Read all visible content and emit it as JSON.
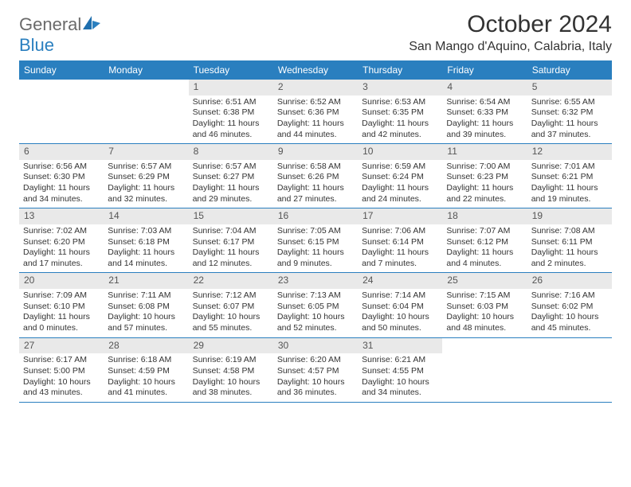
{
  "brand": {
    "name1": "General",
    "name2": "Blue"
  },
  "title": "October 2024",
  "location": "San Mango d'Aquino, Calabria, Italy",
  "colors": {
    "header_bg": "#2a7fbf",
    "header_text": "#ffffff",
    "daynum_bg": "#e9e9e9",
    "daynum_text": "#555555",
    "rule": "#2a7fbf",
    "text": "#333333",
    "logo_gray": "#6a6a6a",
    "logo_blue": "#2a7fbf"
  },
  "weekdays": [
    "Sunday",
    "Monday",
    "Tuesday",
    "Wednesday",
    "Thursday",
    "Friday",
    "Saturday"
  ],
  "weeks": [
    [
      null,
      null,
      {
        "n": "1",
        "sunrise": "Sunrise: 6:51 AM",
        "sunset": "Sunset: 6:38 PM",
        "daylight": "Daylight: 11 hours and 46 minutes."
      },
      {
        "n": "2",
        "sunrise": "Sunrise: 6:52 AM",
        "sunset": "Sunset: 6:36 PM",
        "daylight": "Daylight: 11 hours and 44 minutes."
      },
      {
        "n": "3",
        "sunrise": "Sunrise: 6:53 AM",
        "sunset": "Sunset: 6:35 PM",
        "daylight": "Daylight: 11 hours and 42 minutes."
      },
      {
        "n": "4",
        "sunrise": "Sunrise: 6:54 AM",
        "sunset": "Sunset: 6:33 PM",
        "daylight": "Daylight: 11 hours and 39 minutes."
      },
      {
        "n": "5",
        "sunrise": "Sunrise: 6:55 AM",
        "sunset": "Sunset: 6:32 PM",
        "daylight": "Daylight: 11 hours and 37 minutes."
      }
    ],
    [
      {
        "n": "6",
        "sunrise": "Sunrise: 6:56 AM",
        "sunset": "Sunset: 6:30 PM",
        "daylight": "Daylight: 11 hours and 34 minutes."
      },
      {
        "n": "7",
        "sunrise": "Sunrise: 6:57 AM",
        "sunset": "Sunset: 6:29 PM",
        "daylight": "Daylight: 11 hours and 32 minutes."
      },
      {
        "n": "8",
        "sunrise": "Sunrise: 6:57 AM",
        "sunset": "Sunset: 6:27 PM",
        "daylight": "Daylight: 11 hours and 29 minutes."
      },
      {
        "n": "9",
        "sunrise": "Sunrise: 6:58 AM",
        "sunset": "Sunset: 6:26 PM",
        "daylight": "Daylight: 11 hours and 27 minutes."
      },
      {
        "n": "10",
        "sunrise": "Sunrise: 6:59 AM",
        "sunset": "Sunset: 6:24 PM",
        "daylight": "Daylight: 11 hours and 24 minutes."
      },
      {
        "n": "11",
        "sunrise": "Sunrise: 7:00 AM",
        "sunset": "Sunset: 6:23 PM",
        "daylight": "Daylight: 11 hours and 22 minutes."
      },
      {
        "n": "12",
        "sunrise": "Sunrise: 7:01 AM",
        "sunset": "Sunset: 6:21 PM",
        "daylight": "Daylight: 11 hours and 19 minutes."
      }
    ],
    [
      {
        "n": "13",
        "sunrise": "Sunrise: 7:02 AM",
        "sunset": "Sunset: 6:20 PM",
        "daylight": "Daylight: 11 hours and 17 minutes."
      },
      {
        "n": "14",
        "sunrise": "Sunrise: 7:03 AM",
        "sunset": "Sunset: 6:18 PM",
        "daylight": "Daylight: 11 hours and 14 minutes."
      },
      {
        "n": "15",
        "sunrise": "Sunrise: 7:04 AM",
        "sunset": "Sunset: 6:17 PM",
        "daylight": "Daylight: 11 hours and 12 minutes."
      },
      {
        "n": "16",
        "sunrise": "Sunrise: 7:05 AM",
        "sunset": "Sunset: 6:15 PM",
        "daylight": "Daylight: 11 hours and 9 minutes."
      },
      {
        "n": "17",
        "sunrise": "Sunrise: 7:06 AM",
        "sunset": "Sunset: 6:14 PM",
        "daylight": "Daylight: 11 hours and 7 minutes."
      },
      {
        "n": "18",
        "sunrise": "Sunrise: 7:07 AM",
        "sunset": "Sunset: 6:12 PM",
        "daylight": "Daylight: 11 hours and 4 minutes."
      },
      {
        "n": "19",
        "sunrise": "Sunrise: 7:08 AM",
        "sunset": "Sunset: 6:11 PM",
        "daylight": "Daylight: 11 hours and 2 minutes."
      }
    ],
    [
      {
        "n": "20",
        "sunrise": "Sunrise: 7:09 AM",
        "sunset": "Sunset: 6:10 PM",
        "daylight": "Daylight: 11 hours and 0 minutes."
      },
      {
        "n": "21",
        "sunrise": "Sunrise: 7:11 AM",
        "sunset": "Sunset: 6:08 PM",
        "daylight": "Daylight: 10 hours and 57 minutes."
      },
      {
        "n": "22",
        "sunrise": "Sunrise: 7:12 AM",
        "sunset": "Sunset: 6:07 PM",
        "daylight": "Daylight: 10 hours and 55 minutes."
      },
      {
        "n": "23",
        "sunrise": "Sunrise: 7:13 AM",
        "sunset": "Sunset: 6:05 PM",
        "daylight": "Daylight: 10 hours and 52 minutes."
      },
      {
        "n": "24",
        "sunrise": "Sunrise: 7:14 AM",
        "sunset": "Sunset: 6:04 PM",
        "daylight": "Daylight: 10 hours and 50 minutes."
      },
      {
        "n": "25",
        "sunrise": "Sunrise: 7:15 AM",
        "sunset": "Sunset: 6:03 PM",
        "daylight": "Daylight: 10 hours and 48 minutes."
      },
      {
        "n": "26",
        "sunrise": "Sunrise: 7:16 AM",
        "sunset": "Sunset: 6:02 PM",
        "daylight": "Daylight: 10 hours and 45 minutes."
      }
    ],
    [
      {
        "n": "27",
        "sunrise": "Sunrise: 6:17 AM",
        "sunset": "Sunset: 5:00 PM",
        "daylight": "Daylight: 10 hours and 43 minutes."
      },
      {
        "n": "28",
        "sunrise": "Sunrise: 6:18 AM",
        "sunset": "Sunset: 4:59 PM",
        "daylight": "Daylight: 10 hours and 41 minutes."
      },
      {
        "n": "29",
        "sunrise": "Sunrise: 6:19 AM",
        "sunset": "Sunset: 4:58 PM",
        "daylight": "Daylight: 10 hours and 38 minutes."
      },
      {
        "n": "30",
        "sunrise": "Sunrise: 6:20 AM",
        "sunset": "Sunset: 4:57 PM",
        "daylight": "Daylight: 10 hours and 36 minutes."
      },
      {
        "n": "31",
        "sunrise": "Sunrise: 6:21 AM",
        "sunset": "Sunset: 4:55 PM",
        "daylight": "Daylight: 10 hours and 34 minutes."
      },
      null,
      null
    ]
  ]
}
